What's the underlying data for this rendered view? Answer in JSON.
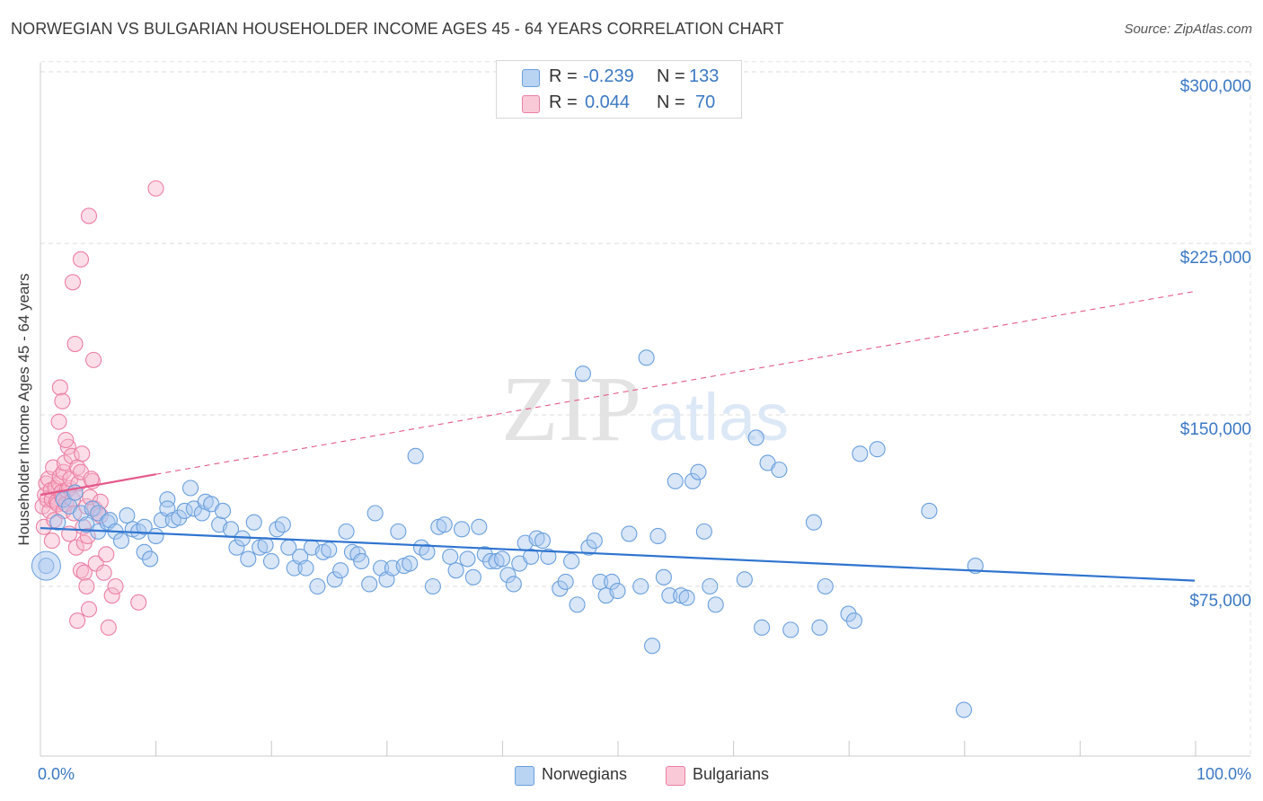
{
  "title": "NORWEGIAN VS BULGARIAN HOUSEHOLDER INCOME AGES 45 - 64 YEARS CORRELATION CHART",
  "source": "Source: ZipAtlas.com",
  "watermark": {
    "zip": "ZIP",
    "atlas": "atlas"
  },
  "legend": {
    "rows": [
      {
        "r_label": "R =",
        "r_value": "-0.239",
        "n_label": "N =",
        "n_value": "133",
        "color": "#a9c8f0"
      },
      {
        "r_label": "R =",
        "r_value": "0.044",
        "n_label": "N =",
        "n_value": "70",
        "color": "#f7b6cb"
      }
    ]
  },
  "bottom_legend": {
    "norwegians": "Norwegians",
    "bulgarians": "Bulgarians"
  },
  "colors": {
    "norwegian_fill": "#a9c8f0",
    "norwegian_stroke": "#6a9fdc",
    "norwegian_line": "#2f74d0",
    "bulgarian_fill": "#f7b6cb",
    "bulgarian_stroke": "#ec7fa2",
    "bulgarian_line": "#e4588a",
    "tick_text": "#3b78c4"
  },
  "chart_data": {
    "type": "scatter",
    "title": "NORWEGIAN VS BULGARIAN HOUSEHOLDER INCOME AGES 45 - 64 YEARS CORRELATION CHART",
    "xlabel": "",
    "ylabel": "Householder Income Ages 45 - 64 years",
    "xlim": [
      0,
      100
    ],
    "ylim": [
      0,
      310000
    ],
    "x_tick_labels": [
      "0.0%",
      "100.0%"
    ],
    "y_ticks": [
      75000,
      150000,
      225000,
      300000
    ],
    "y_tick_labels": [
      "$75,000",
      "$150,000",
      "$225,000",
      "$300,000"
    ],
    "grid": true,
    "legend_position": "top-center",
    "series": [
      {
        "name": "Norwegians",
        "r": -0.239,
        "n": 133,
        "trend": {
          "x": [
            0,
            100
          ],
          "y": [
            100500,
            77500
          ],
          "style": "solid"
        },
        "points": [
          [
            0.5,
            84000
          ],
          [
            1.5,
            103000
          ],
          [
            2,
            113000
          ],
          [
            2.5,
            110000
          ],
          [
            3,
            116000
          ],
          [
            3.5,
            107000
          ],
          [
            4,
            102000
          ],
          [
            4.5,
            109000
          ],
          [
            5,
            107000
          ],
          [
            5,
            99000
          ],
          [
            5.8,
            103000
          ],
          [
            6,
            104000
          ],
          [
            6.5,
            99000
          ],
          [
            7,
            95000
          ],
          [
            7.5,
            106000
          ],
          [
            8,
            100000
          ],
          [
            8.5,
            99000
          ],
          [
            9,
            101000
          ],
          [
            9,
            90000
          ],
          [
            9.5,
            87000
          ],
          [
            10,
            97000
          ],
          [
            10.5,
            104000
          ],
          [
            11,
            113000
          ],
          [
            11,
            109000
          ],
          [
            11.5,
            104000
          ],
          [
            12,
            105000
          ],
          [
            12.5,
            108000
          ],
          [
            13,
            118000
          ],
          [
            13.3,
            109000
          ],
          [
            14,
            107000
          ],
          [
            14.3,
            112000
          ],
          [
            14.8,
            111000
          ],
          [
            15.5,
            102000
          ],
          [
            15.8,
            108000
          ],
          [
            16.5,
            100000
          ],
          [
            17,
            92000
          ],
          [
            17.5,
            96000
          ],
          [
            18,
            87000
          ],
          [
            18.5,
            103000
          ],
          [
            19,
            92000
          ],
          [
            19.5,
            93000
          ],
          [
            20,
            86000
          ],
          [
            20.5,
            100000
          ],
          [
            21,
            102000
          ],
          [
            21.5,
            92000
          ],
          [
            22,
            83000
          ],
          [
            22.5,
            88000
          ],
          [
            23,
            83000
          ],
          [
            23.5,
            92000
          ],
          [
            24,
            75000
          ],
          [
            24.5,
            90000
          ],
          [
            25,
            91000
          ],
          [
            25.5,
            78000
          ],
          [
            26,
            82000
          ],
          [
            26.5,
            99000
          ],
          [
            27,
            90000
          ],
          [
            27.5,
            89000
          ],
          [
            27.8,
            86000
          ],
          [
            28.5,
            76000
          ],
          [
            29,
            107000
          ],
          [
            29.5,
            83000
          ],
          [
            30,
            78000
          ],
          [
            30.5,
            83000
          ],
          [
            31,
            99000
          ],
          [
            31.5,
            84000
          ],
          [
            32,
            85000
          ],
          [
            32.5,
            132000
          ],
          [
            33,
            92000
          ],
          [
            33.5,
            90000
          ],
          [
            34,
            75000
          ],
          [
            34.5,
            101000
          ],
          [
            35,
            102000
          ],
          [
            35.5,
            88000
          ],
          [
            36,
            82000
          ],
          [
            36.5,
            100000
          ],
          [
            37,
            87000
          ],
          [
            37.5,
            79000
          ],
          [
            38,
            101000
          ],
          [
            38.5,
            89000
          ],
          [
            39,
            86000
          ],
          [
            39.5,
            86000
          ],
          [
            40,
            87000
          ],
          [
            40.5,
            80000
          ],
          [
            41,
            76000
          ],
          [
            41.5,
            85000
          ],
          [
            42,
            94000
          ],
          [
            42.5,
            88000
          ],
          [
            43,
            96000
          ],
          [
            43.5,
            95000
          ],
          [
            44,
            88000
          ],
          [
            45,
            74000
          ],
          [
            45.5,
            77000
          ],
          [
            46,
            86000
          ],
          [
            46.5,
            67000
          ],
          [
            47,
            168000
          ],
          [
            47.5,
            92000
          ],
          [
            48,
            95000
          ],
          [
            48.5,
            77000
          ],
          [
            49,
            71000
          ],
          [
            49.5,
            77000
          ],
          [
            50,
            73000
          ],
          [
            51,
            98000
          ],
          [
            52,
            75000
          ],
          [
            52.5,
            175000
          ],
          [
            53,
            49000
          ],
          [
            53.5,
            97000
          ],
          [
            54,
            79000
          ],
          [
            54.5,
            71000
          ],
          [
            55,
            121000
          ],
          [
            55.5,
            71000
          ],
          [
            56,
            70000
          ],
          [
            56.5,
            121000
          ],
          [
            57,
            125000
          ],
          [
            57.5,
            99000
          ],
          [
            58,
            75000
          ],
          [
            58.5,
            67000
          ],
          [
            61,
            78000
          ],
          [
            62,
            140000
          ],
          [
            62.5,
            57000
          ],
          [
            63,
            129000
          ],
          [
            64,
            126000
          ],
          [
            65,
            56000
          ],
          [
            67,
            103000
          ],
          [
            67.5,
            57000
          ],
          [
            68,
            75000
          ],
          [
            70,
            63000
          ],
          [
            70.5,
            60000
          ],
          [
            71,
            133000
          ],
          [
            72.5,
            135000
          ],
          [
            77,
            108000
          ],
          [
            80,
            21000
          ],
          [
            81,
            84000
          ]
        ]
      },
      {
        "name": "Bulgarians",
        "r": 0.044,
        "n": 70,
        "trend": {
          "x": [
            0,
            10,
            100
          ],
          "y": [
            115000,
            124000,
            204000
          ],
          "solid_until_x": 10,
          "style": "solid-then-dashed"
        },
        "points": [
          [
            0.2,
            110000
          ],
          [
            0.3,
            101000
          ],
          [
            0.4,
            115000
          ],
          [
            0.5,
            120000
          ],
          [
            0.6,
            113000
          ],
          [
            0.7,
            122000
          ],
          [
            0.8,
            108000
          ],
          [
            0.9,
            117000
          ],
          [
            1,
            95000
          ],
          [
            1,
            113000
          ],
          [
            1.1,
            127000
          ],
          [
            1.2,
            104000
          ],
          [
            1.3,
            118000
          ],
          [
            1.4,
            112000
          ],
          [
            1.5,
            111000
          ],
          [
            1.6,
            120000
          ],
          [
            1.7,
            123000
          ],
          [
            1.8,
            116000
          ],
          [
            1.9,
            114000
          ],
          [
            2,
            125000
          ],
          [
            2,
            108000
          ],
          [
            2.1,
            129000
          ],
          [
            2.2,
            111000
          ],
          [
            2.3,
            117000
          ],
          [
            2.4,
            136000
          ],
          [
            2.5,
            118000
          ],
          [
            2.6,
            122000
          ],
          [
            2.7,
            132000
          ],
          [
            2.8,
            113000
          ],
          [
            2.9,
            107000
          ],
          [
            3,
            116000
          ],
          [
            3.1,
            92000
          ],
          [
            3.2,
            127000
          ],
          [
            3.3,
            120000
          ],
          [
            3.5,
            125000
          ],
          [
            3.6,
            133000
          ],
          [
            3.7,
            101000
          ],
          [
            3.8,
            94000
          ],
          [
            4,
            110000
          ],
          [
            4.1,
            97000
          ],
          [
            4.3,
            114000
          ],
          [
            4.5,
            121000
          ],
          [
            4.7,
            109000
          ],
          [
            5,
            107000
          ],
          [
            5.2,
            112000
          ],
          [
            1.6,
            147000
          ],
          [
            1.7,
            162000
          ],
          [
            1.9,
            156000
          ],
          [
            2.2,
            139000
          ],
          [
            2.8,
            208000
          ],
          [
            3,
            181000
          ],
          [
            3.5,
            218000
          ],
          [
            3.5,
            82000
          ],
          [
            3.8,
            81000
          ],
          [
            4,
            75000
          ],
          [
            4.2,
            65000
          ],
          [
            3.2,
            60000
          ],
          [
            4.2,
            237000
          ],
          [
            4.4,
            122000
          ],
          [
            4.6,
            174000
          ],
          [
            4.8,
            85000
          ],
          [
            5.2,
            106000
          ],
          [
            5.5,
            81000
          ],
          [
            5.7,
            89000
          ],
          [
            5.9,
            57000
          ],
          [
            6.2,
            71000
          ],
          [
            6.5,
            75000
          ],
          [
            8.5,
            68000
          ],
          [
            10,
            249000
          ],
          [
            2.5,
            98000
          ]
        ]
      }
    ]
  }
}
